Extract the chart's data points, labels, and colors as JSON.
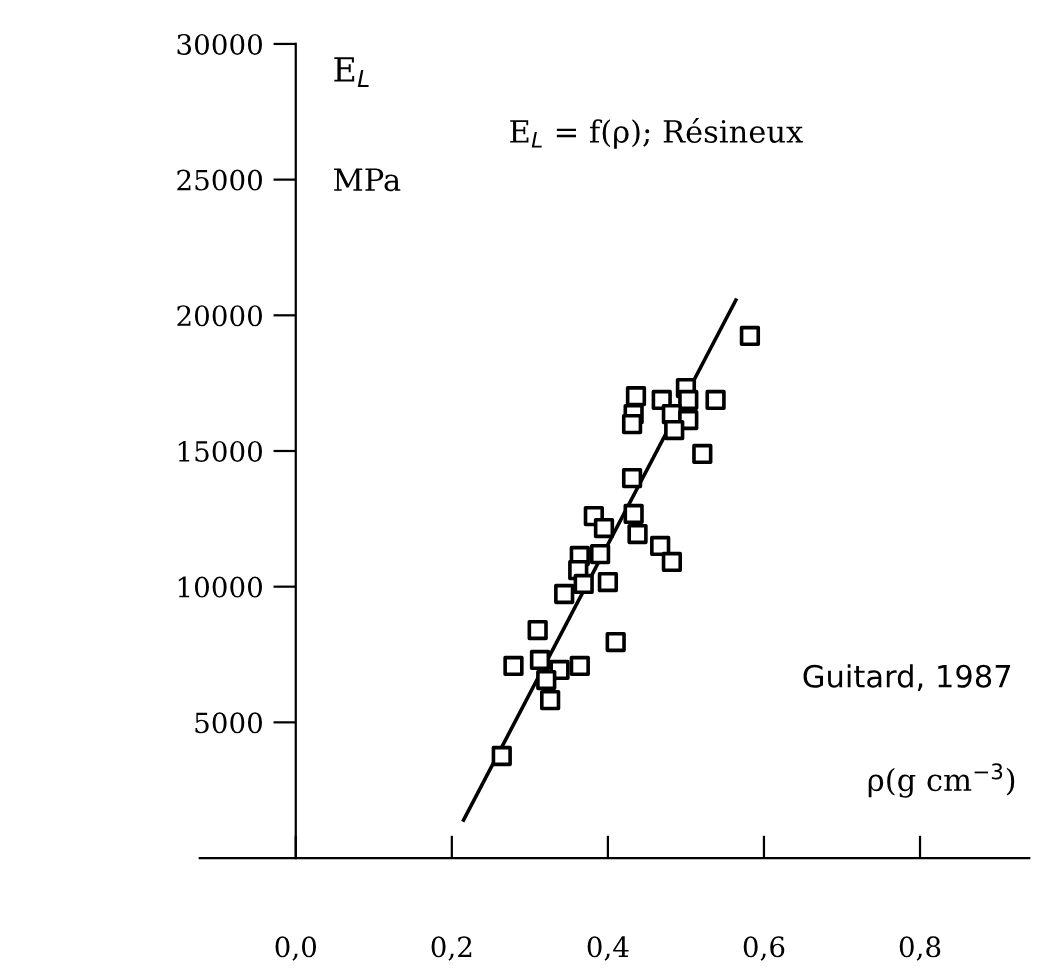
{
  "chart_data": {
    "type": "scatter",
    "title": "E$_{L}$ = f(ρ); Résineux",
    "ylabel": "E$_{L}$",
    "xlabel": "ρ(g cm$^{−3}$)",
    "annotations": [
      "MPa",
      "Guitard, 1987"
    ],
    "series": [
      {
        "color": "#000000",
        "marker": "square",
        "x": [
          0.582,
          0.436,
          0.469,
          0.5,
          0.503,
          0.538,
          0.433,
          0.431,
          0.482,
          0.503,
          0.485,
          0.521,
          0.431,
          0.382,
          0.395,
          0.433,
          0.438,
          0.467,
          0.482,
          0.364,
          0.362,
          0.39,
          0.369,
          0.4,
          0.344,
          0.31,
          0.41,
          0.279,
          0.313,
          0.338,
          0.364,
          0.321,
          0.326,
          0.264
        ],
        "values": [
          19240,
          17020,
          16880,
          17320,
          16880,
          16880,
          16360,
          15990,
          16360,
          16140,
          15770,
          14890,
          14000,
          12600,
          12160,
          12680,
          11940,
          11500,
          10910,
          11130,
          10610,
          11200,
          10100,
          10170,
          9730,
          8400,
          7960,
          7080,
          7300,
          6930,
          7080,
          6560,
          5820,
          3760
        ]
      },
      {
        "type": "line",
        "color": "#000000",
        "marker": "none",
        "line_style": "solid",
        "x": [
          0.215,
          0.564
        ],
        "values": [
          1400,
          20560
        ]
      }
    ],
    "xlim": [
      -0.123,
      0.94
    ],
    "ylim": [
      0,
      30000
    ],
    "xticks": [
      {
        "value": 0,
        "label": "0,0"
      },
      {
        "value": 0.2,
        "label": "0,2"
      },
      {
        "value": 0.4,
        "label": "0,4"
      },
      {
        "value": 0.6,
        "label": "0,6"
      },
      {
        "value": 0.8,
        "label": "0,8"
      }
    ],
    "yticks": [
      5000,
      10000,
      15000,
      20000,
      25000,
      30000
    ],
    "grid": false,
    "legend": false
  }
}
